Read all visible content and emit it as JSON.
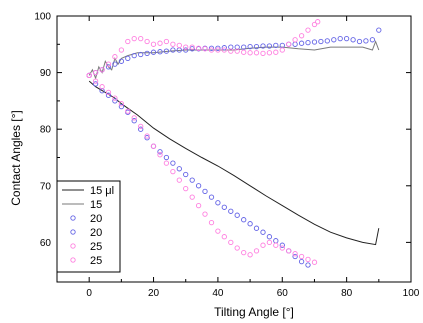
{
  "chart_data": {
    "type": "scatter",
    "title": "",
    "xlabel": "Tilting Angle [°]",
    "ylabel": "Contact Angles [°]",
    "xlim": [
      -10,
      100
    ],
    "ylim": [
      53,
      100
    ],
    "xticks": [
      0,
      20,
      40,
      60,
      80,
      100
    ],
    "yticks": [
      60,
      70,
      80,
      90,
      100
    ],
    "grid": false,
    "legend_position": "bottom-left",
    "series": [
      {
        "name": "15 μl",
        "style": "line",
        "color": "#222222",
        "x": [
          0,
          2,
          5,
          8,
          10,
          15,
          20,
          25,
          30,
          35,
          40,
          45,
          50,
          55,
          60,
          65,
          70,
          75,
          80,
          85,
          89,
          90
        ],
        "y": [
          88.5,
          87.5,
          86.5,
          85.5,
          84.5,
          82.5,
          80.2,
          78.3,
          76.6,
          75.0,
          73.5,
          71.8,
          70.0,
          68.2,
          66.5,
          64.8,
          63.2,
          61.8,
          60.8,
          60.0,
          59.6,
          62.5
        ]
      },
      {
        "name": "15",
        "style": "line",
        "color": "#7a7a7a",
        "x": [
          0,
          1,
          2,
          3,
          4,
          5,
          6,
          7,
          8,
          9,
          10,
          12,
          15,
          20,
          25,
          30,
          35,
          40,
          45,
          50,
          55,
          60,
          65,
          70,
          75,
          80,
          85,
          88,
          89,
          90
        ],
        "y": [
          89.5,
          90.5,
          89.0,
          91.0,
          90.0,
          92.0,
          91.0,
          90.5,
          92.5,
          91.5,
          92.5,
          93.0,
          93.5,
          93.5,
          93.8,
          94.0,
          94.0,
          94.0,
          94.0,
          94.3,
          94.5,
          94.5,
          94.2,
          94.0,
          94.5,
          94.5,
          94.5,
          94.0,
          95.5,
          94.0
        ]
      },
      {
        "name": "20",
        "style": "markers",
        "color": "#6464e6",
        "x": [
          0,
          2,
          4,
          6,
          8,
          10,
          12,
          14,
          16,
          18,
          20,
          22,
          24,
          26,
          28,
          30,
          32,
          34,
          36,
          38,
          40,
          42,
          44,
          46,
          48,
          50,
          52,
          54,
          56,
          58,
          60,
          62,
          64,
          66,
          68
        ],
        "y": [
          89.5,
          88.0,
          86.8,
          86.0,
          85.0,
          84.0,
          83.0,
          81.5,
          80.0,
          78.5,
          77.0,
          76.0,
          75.0,
          74.0,
          73.0,
          72.0,
          71.0,
          70.0,
          69.0,
          68.0,
          67.0,
          66.2,
          65.5,
          64.8,
          64.0,
          63.3,
          62.5,
          61.8,
          61.0,
          60.3,
          59.5,
          58.5,
          57.5,
          56.6,
          56.0
        ]
      },
      {
        "name": "20",
        "style": "markers",
        "color": "#6464e6",
        "x": [
          0,
          2,
          4,
          6,
          8,
          10,
          12,
          14,
          16,
          18,
          20,
          22,
          24,
          26,
          28,
          30,
          32,
          34,
          36,
          38,
          40,
          42,
          44,
          46,
          48,
          50,
          52,
          54,
          56,
          58,
          60,
          62,
          64,
          66,
          68,
          70,
          72,
          74,
          76,
          78,
          80,
          82,
          84,
          86,
          88,
          90
        ],
        "y": [
          89.5,
          90.0,
          90.5,
          91.0,
          91.5,
          92.0,
          92.5,
          93.0,
          93.2,
          93.4,
          93.6,
          93.7,
          93.8,
          94.0,
          94.0,
          94.0,
          94.2,
          94.2,
          94.3,
          94.3,
          94.3,
          94.4,
          94.5,
          94.5,
          94.5,
          94.6,
          94.6,
          94.7,
          94.7,
          94.8,
          94.8,
          95.0,
          95.0,
          95.2,
          95.3,
          95.4,
          95.5,
          95.6,
          95.8,
          96.0,
          96.0,
          95.8,
          95.5,
          95.6,
          95.8,
          97.5
        ]
      },
      {
        "name": "25",
        "style": "markers",
        "color": "#ff80e0",
        "x": [
          0,
          2,
          4,
          6,
          8,
          10,
          12,
          14,
          16,
          18,
          20,
          22,
          24,
          26,
          28,
          30,
          32,
          34,
          36,
          38,
          40,
          42,
          44,
          46,
          48,
          50,
          52,
          54,
          56,
          58,
          60,
          62,
          64,
          66,
          68,
          70
        ],
        "y": [
          89.5,
          88.5,
          87.5,
          86.5,
          85.5,
          84.5,
          83.2,
          82.0,
          80.5,
          78.8,
          77.0,
          75.5,
          74.0,
          72.5,
          71.0,
          69.5,
          68.0,
          66.5,
          65.0,
          63.5,
          62.0,
          61.0,
          60.0,
          59.0,
          58.2,
          57.8,
          58.5,
          59.5,
          60.0,
          59.5,
          59.0,
          58.5,
          58.0,
          57.5,
          57.0,
          56.5
        ]
      },
      {
        "name": "25",
        "style": "markers",
        "color": "#ff80e0",
        "x": [
          0,
          2,
          4,
          6,
          8,
          10,
          12,
          14,
          16,
          18,
          20,
          22,
          24,
          26,
          28,
          30,
          32,
          34,
          36,
          38,
          40,
          42,
          44,
          46,
          48,
          50,
          52,
          54,
          56,
          58,
          60,
          62,
          64,
          66,
          68,
          70,
          71
        ],
        "y": [
          89.5,
          90.0,
          90.5,
          91.5,
          92.8,
          94.0,
          95.5,
          96.0,
          96.0,
          95.5,
          95.0,
          95.2,
          95.5,
          95.0,
          94.8,
          94.5,
          94.5,
          94.3,
          94.2,
          94.0,
          94.0,
          94.0,
          93.8,
          93.8,
          93.6,
          93.5,
          93.5,
          93.4,
          93.5,
          93.6,
          94.0,
          95.0,
          95.8,
          96.5,
          97.5,
          98.5,
          99.0
        ]
      }
    ]
  }
}
